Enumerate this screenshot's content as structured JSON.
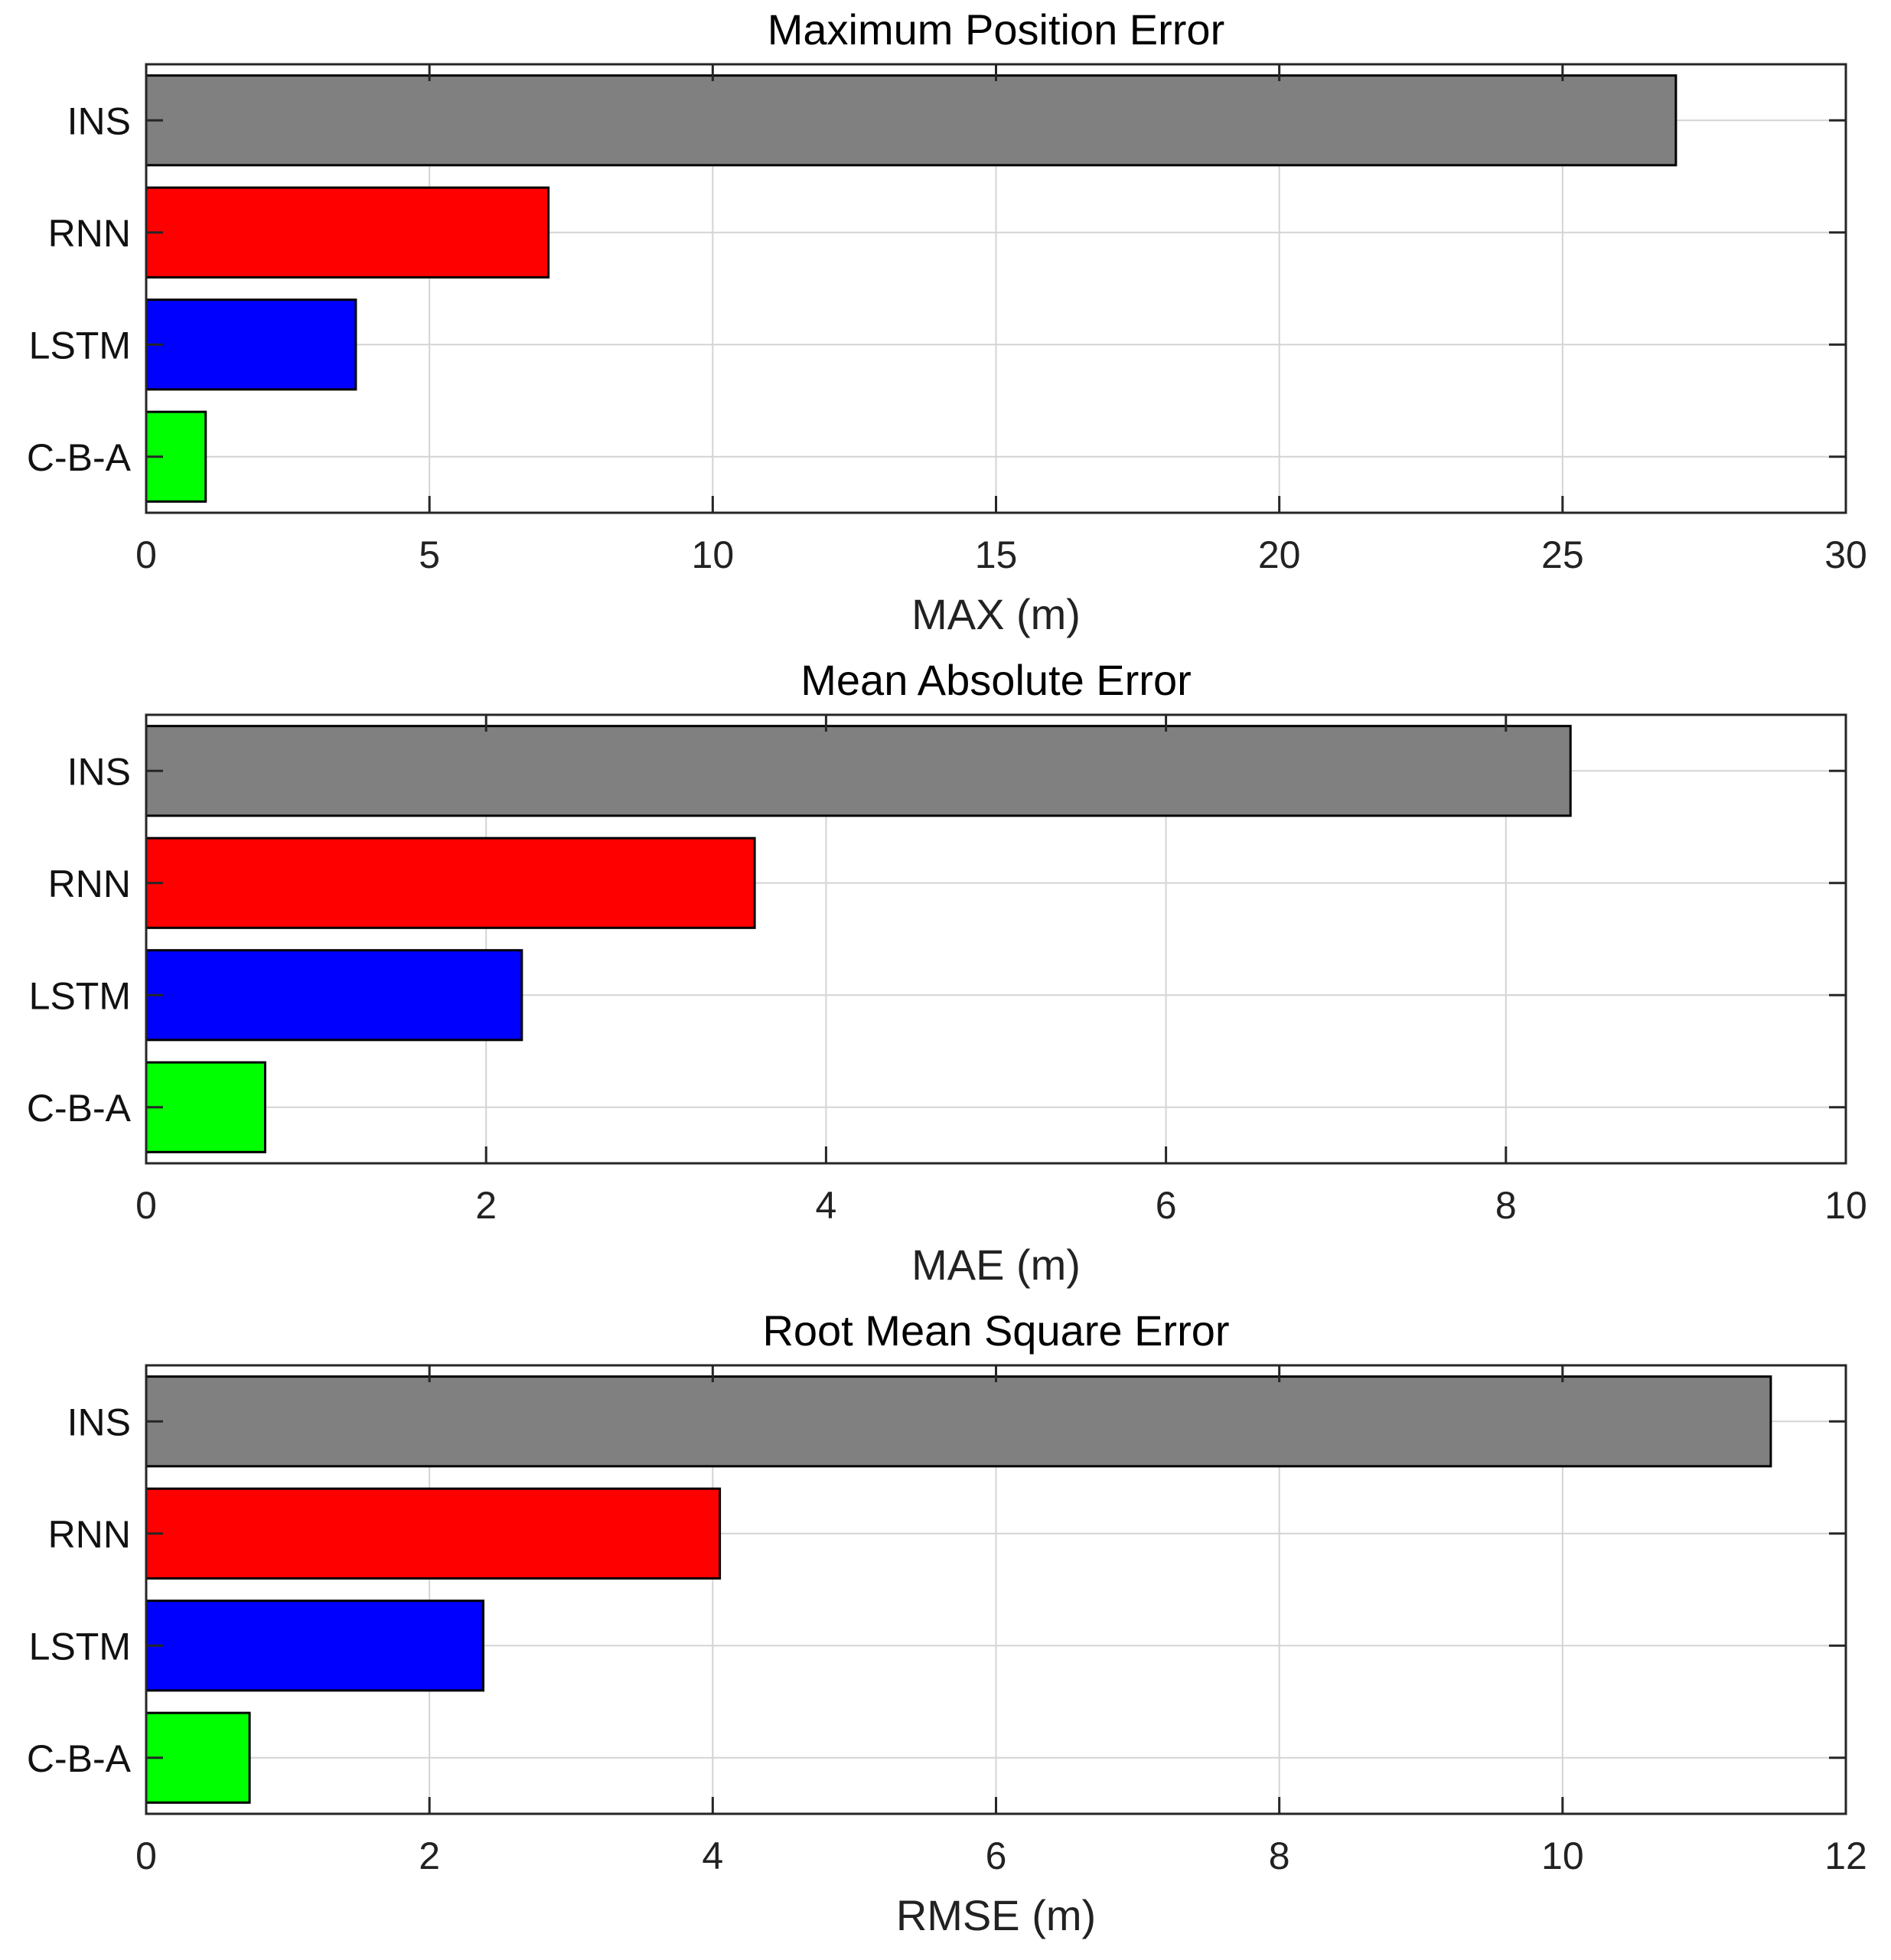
{
  "chart_data": [
    {
      "type": "bar",
      "orientation": "horizontal",
      "title": "Maximum Position Error",
      "xlabel": "MAX (m)",
      "ylabel": "",
      "xlim": [
        0,
        30
      ],
      "xticks": [
        0,
        5,
        10,
        15,
        20,
        25,
        30
      ],
      "categories": [
        "INS",
        "RNN",
        "LSTM",
        "C-B-A"
      ],
      "values": [
        27.0,
        7.1,
        3.7,
        1.05
      ],
      "colors": [
        "#808080",
        "#ff0000",
        "#0000ff",
        "#00ff00"
      ],
      "grid": true
    },
    {
      "type": "bar",
      "orientation": "horizontal",
      "title": "Mean Absolute Error",
      "xlabel": "MAE (m)",
      "ylabel": "",
      "xlim": [
        0,
        10
      ],
      "xticks": [
        0,
        2,
        4,
        6,
        8,
        10
      ],
      "categories": [
        "INS",
        "RNN",
        "LSTM",
        "C-B-A"
      ],
      "values": [
        8.38,
        3.58,
        2.21,
        0.7
      ],
      "colors": [
        "#808080",
        "#ff0000",
        "#0000ff",
        "#00ff00"
      ],
      "grid": true
    },
    {
      "type": "bar",
      "orientation": "horizontal",
      "title": "Root Mean Square Error",
      "xlabel": "RMSE (m)",
      "ylabel": "",
      "xlim": [
        0,
        12
      ],
      "xticks": [
        0,
        2,
        4,
        6,
        8,
        10,
        12
      ],
      "categories": [
        "INS",
        "RNN",
        "LSTM",
        "C-B-A"
      ],
      "values": [
        11.47,
        4.05,
        2.38,
        0.73
      ],
      "colors": [
        "#808080",
        "#ff0000",
        "#0000ff",
        "#00ff00"
      ],
      "grid": true
    }
  ]
}
